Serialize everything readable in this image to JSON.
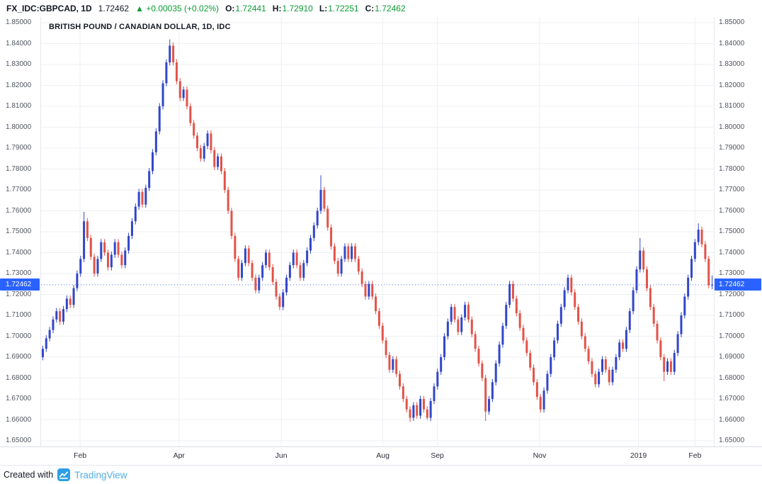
{
  "header": {
    "symbol": "FX_IDC:GBPCAD, 1D",
    "last_price": "1.72462",
    "change_arrow": "▲",
    "change": "+0.00035 (+0.02%)",
    "ohlc": [
      {
        "label": "O:",
        "value": "1.72441"
      },
      {
        "label": "H:",
        "value": "1.72910"
      },
      {
        "label": "L:",
        "value": "1.72251"
      },
      {
        "label": "C:",
        "value": "1.72462"
      }
    ]
  },
  "chart": {
    "title": "BRITISH POUND / CANADIAN DOLLAR, 1D, IDC",
    "price_label": "1.72462",
    "colors": {
      "up": "#3246c8",
      "down": "#e25348",
      "badge": "#2962ff",
      "grid": "#edeff3",
      "green_text": "#0a9b33",
      "brand_blue": "#53aee1"
    }
  },
  "chart_data": {
    "type": "candlestick",
    "title": "BRITISH POUND / CANADIAN DOLLAR, 1D, IDC",
    "symbol": "GBPCAD",
    "interval": "1D",
    "ylim": [
      1.65,
      1.85
    ],
    "y_axis": {
      "min": 1.65,
      "max": 1.85,
      "step": 0.01,
      "labels": [
        "1.85000",
        "1.84000",
        "1.83000",
        "1.82000",
        "1.81000",
        "1.80000",
        "1.79000",
        "1.78000",
        "1.77000",
        "1.76000",
        "1.75000",
        "1.74000",
        "1.73000",
        "1.72000",
        "1.71000",
        "1.70000",
        "1.69000",
        "1.68000",
        "1.67000",
        "1.66000",
        "1.65000"
      ]
    },
    "x_axis": {
      "labels": [
        {
          "label": "Feb",
          "f": 0.058
        },
        {
          "label": "Apr",
          "f": 0.205
        },
        {
          "label": "Jun",
          "f": 0.357
        },
        {
          "label": "Aug",
          "f": 0.508
        },
        {
          "label": "Sep",
          "f": 0.589
        },
        {
          "label": "Nov",
          "f": 0.741
        },
        {
          "label": "2019",
          "f": 0.888
        },
        {
          "label": "Feb",
          "f": 0.972
        }
      ]
    },
    "first_open": 1.69,
    "default_wick": 0.0015,
    "closes": [
      1.694,
      1.699,
      1.703,
      1.708,
      1.712,
      1.707,
      1.713,
      1.718,
      1.715,
      1.723,
      1.73,
      1.737,
      1.755,
      1.747,
      1.738,
      1.73,
      1.737,
      1.745,
      1.74,
      1.733,
      1.739,
      1.745,
      1.739,
      1.734,
      1.741,
      1.748,
      1.755,
      1.762,
      1.769,
      1.763,
      1.771,
      1.779,
      1.788,
      1.798,
      1.81,
      1.821,
      1.831,
      1.839,
      1.831,
      1.822,
      1.814,
      1.818,
      1.81,
      1.802,
      1.796,
      1.79,
      1.785,
      1.791,
      1.797,
      1.789,
      1.781,
      1.786,
      1.779,
      1.77,
      1.76,
      1.748,
      1.737,
      1.728,
      1.735,
      1.742,
      1.735,
      1.728,
      1.722,
      1.728,
      1.734,
      1.74,
      1.733,
      1.726,
      1.719,
      1.714,
      1.721,
      1.728,
      1.734,
      1.74,
      1.734,
      1.728,
      1.735,
      1.741,
      1.747,
      1.753,
      1.76,
      1.77,
      1.761,
      1.752,
      1.743,
      1.736,
      1.73,
      1.737,
      1.743,
      1.737,
      1.743,
      1.737,
      1.731,
      1.725,
      1.719,
      1.725,
      1.719,
      1.712,
      1.705,
      1.698,
      1.691,
      1.684,
      1.689,
      1.682,
      1.676,
      1.67,
      1.665,
      1.661,
      1.667,
      1.662,
      1.67,
      1.665,
      1.661,
      1.669,
      1.676,
      1.683,
      1.69,
      1.7,
      1.707,
      1.714,
      1.708,
      1.702,
      1.709,
      1.715,
      1.708,
      1.701,
      1.694,
      1.687,
      1.68,
      1.664,
      1.67,
      1.678,
      1.687,
      1.696,
      1.705,
      1.715,
      1.725,
      1.718,
      1.711,
      1.704,
      1.698,
      1.692,
      1.685,
      1.678,
      1.671,
      1.665,
      1.674,
      1.682,
      1.69,
      1.698,
      1.706,
      1.714,
      1.722,
      1.728,
      1.721,
      1.714,
      1.707,
      1.7,
      1.694,
      1.688,
      1.682,
      1.677,
      1.683,
      1.689,
      1.684,
      1.678,
      1.684,
      1.69,
      1.697,
      1.694,
      1.703,
      1.712,
      1.722,
      1.732,
      1.741,
      1.732,
      1.723,
      1.714,
      1.706,
      1.698,
      1.69,
      1.683,
      1.688,
      1.683,
      1.692,
      1.701,
      1.71,
      1.719,
      1.728,
      1.737,
      1.745,
      1.751,
      1.744,
      1.737,
      1.72441,
      1.72462
    ],
    "wick_overrides": {
      "12": {
        "h": 1.7595
      },
      "37": {
        "h": 1.842
      },
      "81": {
        "h": 1.777
      },
      "107": {
        "l": 1.659
      },
      "112": {
        "l": 1.66
      },
      "129": {
        "l": 1.6595
      },
      "174": {
        "h": 1.747
      },
      "181": {
        "l": 1.6785
      },
      "191": {
        "h": 1.754
      },
      "195": {
        "h": 1.7291,
        "l": 1.72251
      }
    },
    "last": {
      "open": 1.72441,
      "high": 1.7291,
      "low": 1.72251,
      "close": 1.72462
    }
  },
  "footer": {
    "created_with": "Created with",
    "brand": "TradingView"
  }
}
